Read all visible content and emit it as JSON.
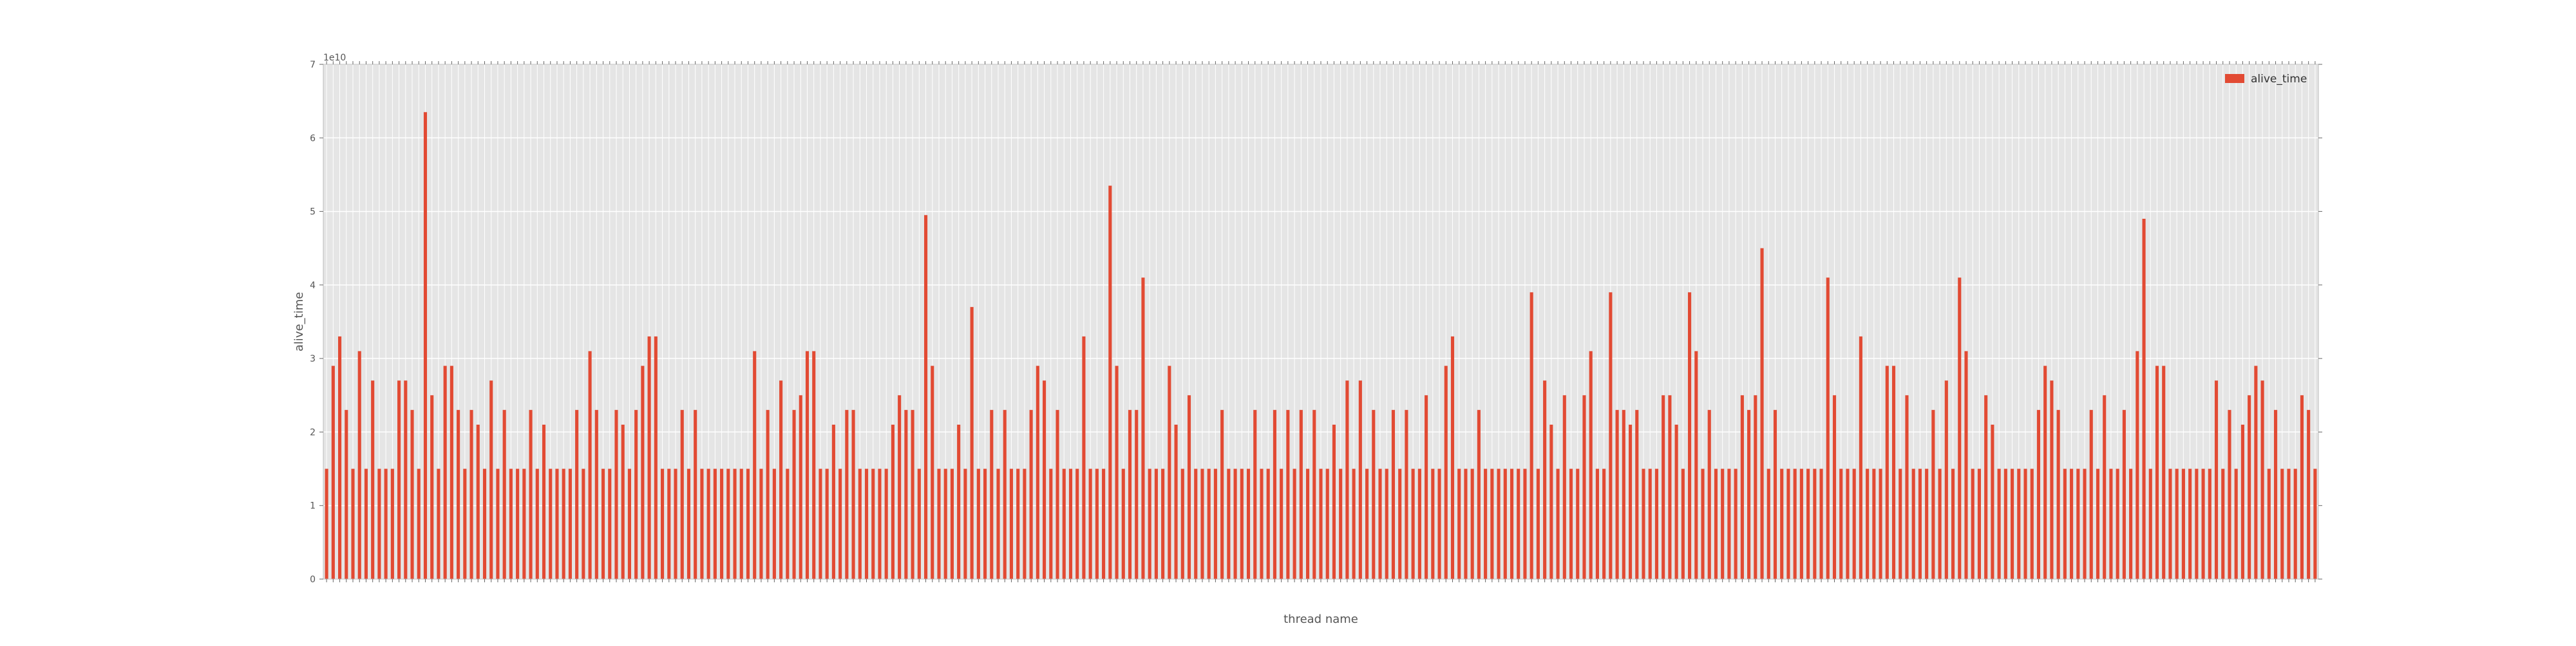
{
  "chart_data": {
    "type": "bar",
    "xlabel": "thread name",
    "ylabel": "alive_time",
    "ylim": [
      0,
      7
    ],
    "y_multiplier_label": "1e10",
    "yticks": [
      "0",
      "1",
      "2",
      "3",
      "4",
      "5",
      "6",
      "7"
    ],
    "grid": true,
    "legend": {
      "position": "top-right",
      "entries": [
        "alive_time"
      ]
    },
    "series": [
      {
        "name": "alive_time",
        "color": "#e24a33",
        "values": [
          1.5,
          2.9,
          3.3,
          2.3,
          1.5,
          3.1,
          1.5,
          2.7,
          1.5,
          1.5,
          1.5,
          2.7,
          2.7,
          2.3,
          1.5,
          6.35,
          2.5,
          1.5,
          2.9,
          2.9,
          2.3,
          1.5,
          2.3,
          2.1,
          1.5,
          2.7,
          1.5,
          2.3,
          1.5,
          1.5,
          1.5,
          2.3,
          1.5,
          2.1,
          1.5,
          1.5,
          1.5,
          1.5,
          2.3,
          1.5,
          3.1,
          2.3,
          1.5,
          1.5,
          2.3,
          2.1,
          1.5,
          2.3,
          2.9,
          3.3,
          3.3,
          1.5,
          1.5,
          1.5,
          2.3,
          1.5,
          2.3,
          1.5,
          1.5,
          1.5,
          1.5,
          1.5,
          1.5,
          1.5,
          1.5,
          3.1,
          1.5,
          2.3,
          1.5,
          2.7,
          1.5,
          2.3,
          2.5,
          3.1,
          3.1,
          1.5,
          1.5,
          2.1,
          1.5,
          2.3,
          2.3,
          1.5,
          1.5,
          1.5,
          1.5,
          1.5,
          2.1,
          2.5,
          2.3,
          2.3,
          1.5,
          4.95,
          2.9,
          1.5,
          1.5,
          1.5,
          2.1,
          1.5,
          3.7,
          1.5,
          1.5,
          2.3,
          1.5,
          2.3,
          1.5,
          1.5,
          1.5,
          2.3,
          2.9,
          2.7,
          1.5,
          2.3,
          1.5,
          1.5,
          1.5,
          3.3,
          1.5,
          1.5,
          1.5,
          5.35,
          2.9,
          1.5,
          2.3,
          2.3,
          4.1,
          1.5,
          1.5,
          1.5,
          2.9,
          2.1,
          1.5,
          2.5,
          1.5,
          1.5,
          1.5,
          1.5,
          2.3,
          1.5,
          1.5,
          1.5,
          1.5,
          2.3,
          1.5,
          1.5,
          2.3,
          1.5,
          2.3,
          1.5,
          2.3,
          1.5,
          2.3,
          1.5,
          1.5,
          2.1,
          1.5,
          2.7,
          1.5,
          2.7,
          1.5,
          2.3,
          1.5,
          1.5,
          2.3,
          1.5,
          2.3,
          1.5,
          1.5,
          2.5,
          1.5,
          1.5,
          2.9,
          3.3,
          1.5,
          1.5,
          1.5,
          2.3,
          1.5,
          1.5,
          1.5,
          1.5,
          1.5,
          1.5,
          1.5,
          3.9,
          1.5,
          2.7,
          2.1,
          1.5,
          2.5,
          1.5,
          1.5,
          2.5,
          3.1,
          1.5,
          1.5,
          3.9,
          2.3,
          2.3,
          2.1,
          2.3,
          1.5,
          1.5,
          1.5,
          2.5,
          2.5,
          2.1,
          1.5,
          3.9,
          3.1,
          1.5,
          2.3,
          1.5,
          1.5,
          1.5,
          1.5,
          2.5,
          2.3,
          2.5,
          4.5,
          1.5,
          2.3,
          1.5,
          1.5,
          1.5,
          1.5,
          1.5,
          1.5,
          1.5,
          4.1,
          2.5,
          1.5,
          1.5,
          1.5,
          3.3,
          1.5,
          1.5,
          1.5,
          2.9,
          2.9,
          1.5,
          2.5,
          1.5,
          1.5,
          1.5,
          2.3,
          1.5,
          2.7,
          1.5,
          4.1,
          3.1,
          1.5,
          1.5,
          2.5,
          2.1,
          1.5,
          1.5,
          1.5,
          1.5,
          1.5,
          1.5,
          2.3,
          2.9,
          2.7,
          2.3,
          1.5,
          1.5,
          1.5,
          1.5,
          2.3,
          1.5,
          2.5,
          1.5,
          1.5,
          2.3,
          1.5,
          3.1,
          4.9,
          1.5,
          2.9,
          2.9,
          1.5,
          1.5,
          1.5,
          1.5,
          1.5,
          1.5,
          1.5,
          2.7,
          1.5,
          2.3,
          1.5,
          2.1,
          2.5,
          2.9,
          2.7,
          1.5,
          2.3,
          1.5,
          1.5,
          1.5,
          2.5,
          2.3,
          1.5
        ]
      }
    ]
  }
}
